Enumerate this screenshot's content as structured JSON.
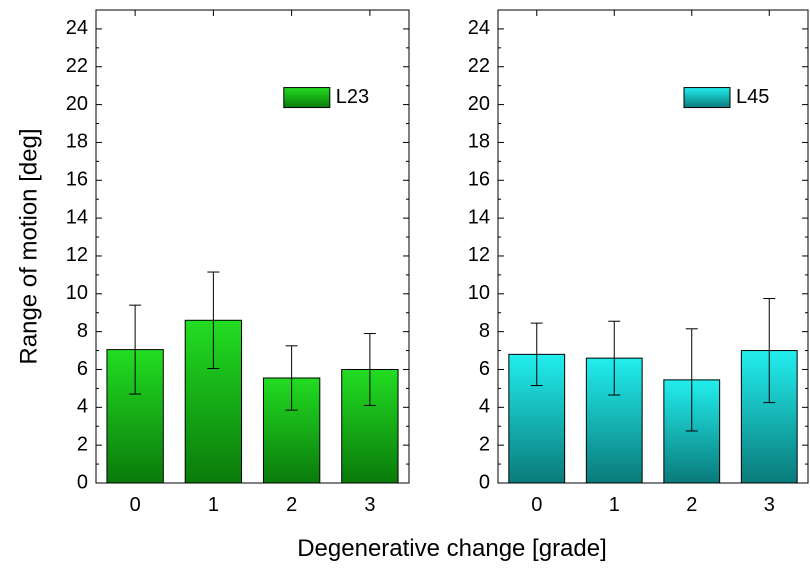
{
  "chart_data": {
    "type": "bar",
    "ylabel": "Range of motion [deg]",
    "xlabel": "Degenerative change [grade]",
    "categories": [
      "0",
      "1",
      "2",
      "3"
    ],
    "ylim": [
      0,
      25
    ],
    "yticks": [
      0,
      2,
      4,
      6,
      8,
      10,
      12,
      14,
      16,
      18,
      20,
      22,
      24
    ],
    "grid": false,
    "panels": [
      {
        "name": "L23",
        "legend_position": "top-right",
        "color_top": "#22dd22",
        "color_bottom": "#0a7a0a",
        "values": [
          7.05,
          8.6,
          5.55,
          6.0
        ],
        "errors": [
          2.35,
          2.55,
          1.7,
          1.9
        ]
      },
      {
        "name": "L45",
        "legend_position": "top-right",
        "color_top": "#22eeee",
        "color_bottom": "#0a7a7a",
        "values": [
          6.8,
          6.6,
          5.45,
          7.0
        ],
        "errors": [
          1.65,
          1.95,
          2.7,
          2.75
        ]
      }
    ]
  }
}
